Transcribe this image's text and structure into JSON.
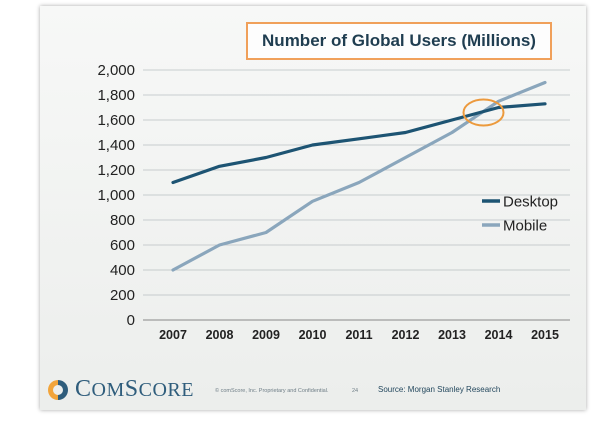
{
  "chart_data": {
    "type": "line",
    "title": "Number of Global Users (Millions)",
    "xlabel": "",
    "ylabel": "",
    "categories": [
      "2007",
      "2008",
      "2009",
      "2010",
      "2011",
      "2012",
      "2013",
      "2014",
      "2015"
    ],
    "ylim": [
      0,
      2000
    ],
    "yticks": [
      "0",
      "200",
      "400",
      "600",
      "800",
      "1,000",
      "1,200",
      "1,400",
      "1,600",
      "1,800",
      "2,000"
    ],
    "ytick_values": [
      0,
      200,
      400,
      600,
      800,
      1000,
      1200,
      1400,
      1600,
      1800,
      2000
    ],
    "grid": true,
    "legend_position": "right",
    "series": [
      {
        "name": "Desktop",
        "color": "#1d5473",
        "values": [
          1100,
          1230,
          1300,
          1400,
          1450,
          1500,
          1600,
          1700,
          1730
        ]
      },
      {
        "name": "Mobile",
        "color": "#8aa6bc",
        "values": [
          400,
          600,
          700,
          950,
          1100,
          1300,
          1500,
          1750,
          1900
        ]
      }
    ],
    "annotation": {
      "shape": "circle",
      "color": "#ec9a3d",
      "at_category": "2014",
      "at_value": 1660
    }
  },
  "footer": {
    "logo_text_c": "C",
    "logo_text_rest": "OM",
    "logo_text_s": "S",
    "logo_text_end": "CORE",
    "logo_colors": [
      "#f2a43a",
      "#2f5d7c"
    ],
    "copyright": "© comScore, Inc.  Proprietary and Confidential.",
    "page_number": "24",
    "source": "Source: Morgan Stanley Research"
  }
}
